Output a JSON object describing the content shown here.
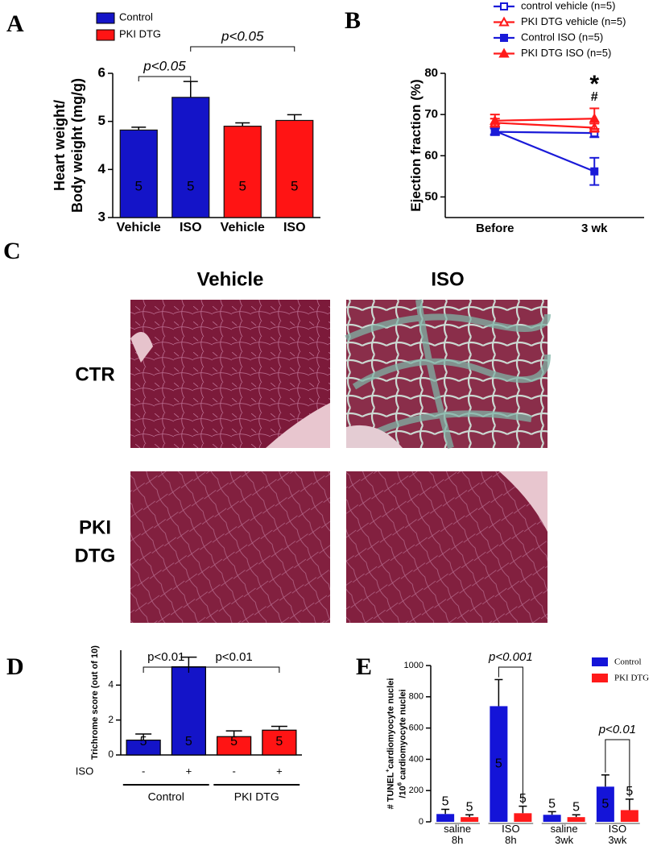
{
  "chart_data": [
    {
      "panel": "A",
      "type": "bar",
      "ylabel": [
        [
          {
            "text": "Heart weight/"
          }
        ],
        [
          {
            "text": "Body weight (mg/g)"
          }
        ]
      ],
      "categories": [
        "Vehicle",
        "ISO",
        "Vehicle",
        "ISO"
      ],
      "series": [
        {
          "name": "Control",
          "color": "#1414c8",
          "values": [
            4.82,
            5.5,
            null,
            null
          ],
          "errors": [
            0.06,
            0.33,
            null,
            null
          ],
          "n": [
            5,
            5,
            null,
            null
          ]
        },
        {
          "name": "PKI DTG",
          "color": "#ff1414",
          "values": [
            null,
            null,
            4.9,
            5.02
          ],
          "errors": [
            null,
            null,
            0.07,
            0.12
          ],
          "n": [
            null,
            null,
            5,
            5
          ]
        }
      ],
      "ylim": [
        3,
        6
      ],
      "yticks": [
        3,
        4,
        5,
        6
      ],
      "legend": true,
      "annotations": [
        {
          "text": "p<0.05",
          "from": 0,
          "to": 1
        },
        {
          "text": "p<0.05",
          "from": 1,
          "to": 3
        }
      ]
    },
    {
      "panel": "B",
      "type": "line",
      "ylabel": [
        [
          {
            "text": "Ejection fraction (%)"
          }
        ]
      ],
      "categories": [
        "Before",
        "3 wk"
      ],
      "series": [
        {
          "name": "control vehicle (n=5)",
          "color": "#1a1ad8",
          "marker": "square",
          "filled": false,
          "values": [
            65.8,
            65.5
          ],
          "errors": [
            0.8,
            1.0
          ]
        },
        {
          "name": "PKI DTG vehicle (n=5)",
          "color": "#ff1a1a",
          "marker": "triangle",
          "filled": false,
          "values": [
            68.0,
            66.8
          ],
          "errors": [
            1.0,
            1.0
          ]
        },
        {
          "name": "Control ISO (n=5)",
          "color": "#1a1ad8",
          "marker": "square",
          "filled": true,
          "values": [
            66.0,
            56.2
          ],
          "errors": [
            0.8,
            3.3
          ]
        },
        {
          "name": "PKI DTG ISO (n=5)",
          "color": "#ff1a1a",
          "marker": "triangle",
          "filled": true,
          "values": [
            68.5,
            69.0
          ],
          "errors": [
            1.5,
            2.5
          ]
        }
      ],
      "ylim": [
        45,
        80
      ],
      "yticks": [
        50,
        60,
        70,
        80
      ],
      "legend": true,
      "annotations": [
        {
          "text": "*",
          "category": 1
        },
        {
          "text": "#",
          "category": 1
        }
      ]
    },
    {
      "panel": "D",
      "type": "bar",
      "ylabel": [
        [
          {
            "text": "Trichrome score  (out of 10)"
          }
        ]
      ],
      "xlabel": "ISO",
      "categories": [
        "-",
        "+",
        "-",
        "+"
      ],
      "series": [
        {
          "name": "Control",
          "color": "#1414c8",
          "values": [
            0.85,
            5.05,
            null,
            null
          ],
          "errors": [
            0.35,
            0.55,
            null,
            null
          ],
          "n": [
            5,
            5,
            null,
            null
          ]
        },
        {
          "name": "PKI DTG",
          "color": "#ff1414",
          "values": [
            null,
            null,
            1.05,
            1.42
          ],
          "errors": [
            null,
            null,
            0.33,
            0.22
          ],
          "n": [
            null,
            null,
            5,
            5
          ]
        }
      ],
      "ylim": [
        0,
        6
      ],
      "yticks": [
        0,
        2,
        4
      ],
      "legend": false,
      "groups": true,
      "annotations": [
        {
          "text": "p<0.01",
          "from": 0,
          "to": 1
        },
        {
          "text": "p<0.01",
          "from": 1,
          "to": 3
        }
      ]
    },
    {
      "panel": "E",
      "type": "bar",
      "ylabel": [
        [
          {
            "text": "# TUNEL"
          },
          {
            "text": "+",
            "sup": true
          },
          {
            "text": "cardiomyocyte nuclei"
          }
        ],
        [
          {
            "text": "/10"
          },
          {
            "text": "6",
            "sup": true
          },
          {
            "text": " cardiomyocyte nuclei"
          }
        ]
      ],
      "categories": [
        [
          "saline",
          "8h"
        ],
        [
          "ISO",
          "8h"
        ],
        [
          "saline",
          "3wk"
        ],
        [
          "ISO",
          "3wk"
        ]
      ],
      "series": [
        {
          "name": "Control",
          "color": "#1414d8",
          "values": [
            50,
            740,
            45,
            225
          ],
          "errors": [
            30,
            170,
            20,
            75
          ],
          "n": [
            5,
            5,
            5,
            5
          ]
        },
        {
          "name": "PKI DTG",
          "color": "#ff1a1a",
          "values": [
            30,
            55,
            30,
            75
          ],
          "errors": [
            15,
            45,
            15,
            70
          ],
          "n": [
            5,
            5,
            5,
            5
          ]
        }
      ],
      "ylim": [
        0,
        1000
      ],
      "yticks": [
        0,
        200,
        400,
        600,
        800,
        1000
      ],
      "legend": true,
      "annotations": [
        {
          "text": "p<0.001",
          "category": 1
        },
        {
          "text": "p<0.01",
          "category": 3
        }
      ]
    }
  ],
  "image_panel": {
    "panel": "C",
    "columns": [
      "Vehicle",
      "ISO"
    ],
    "rows": [
      [
        "CTR"
      ],
      [
        "PKI",
        "DTG"
      ]
    ]
  }
}
